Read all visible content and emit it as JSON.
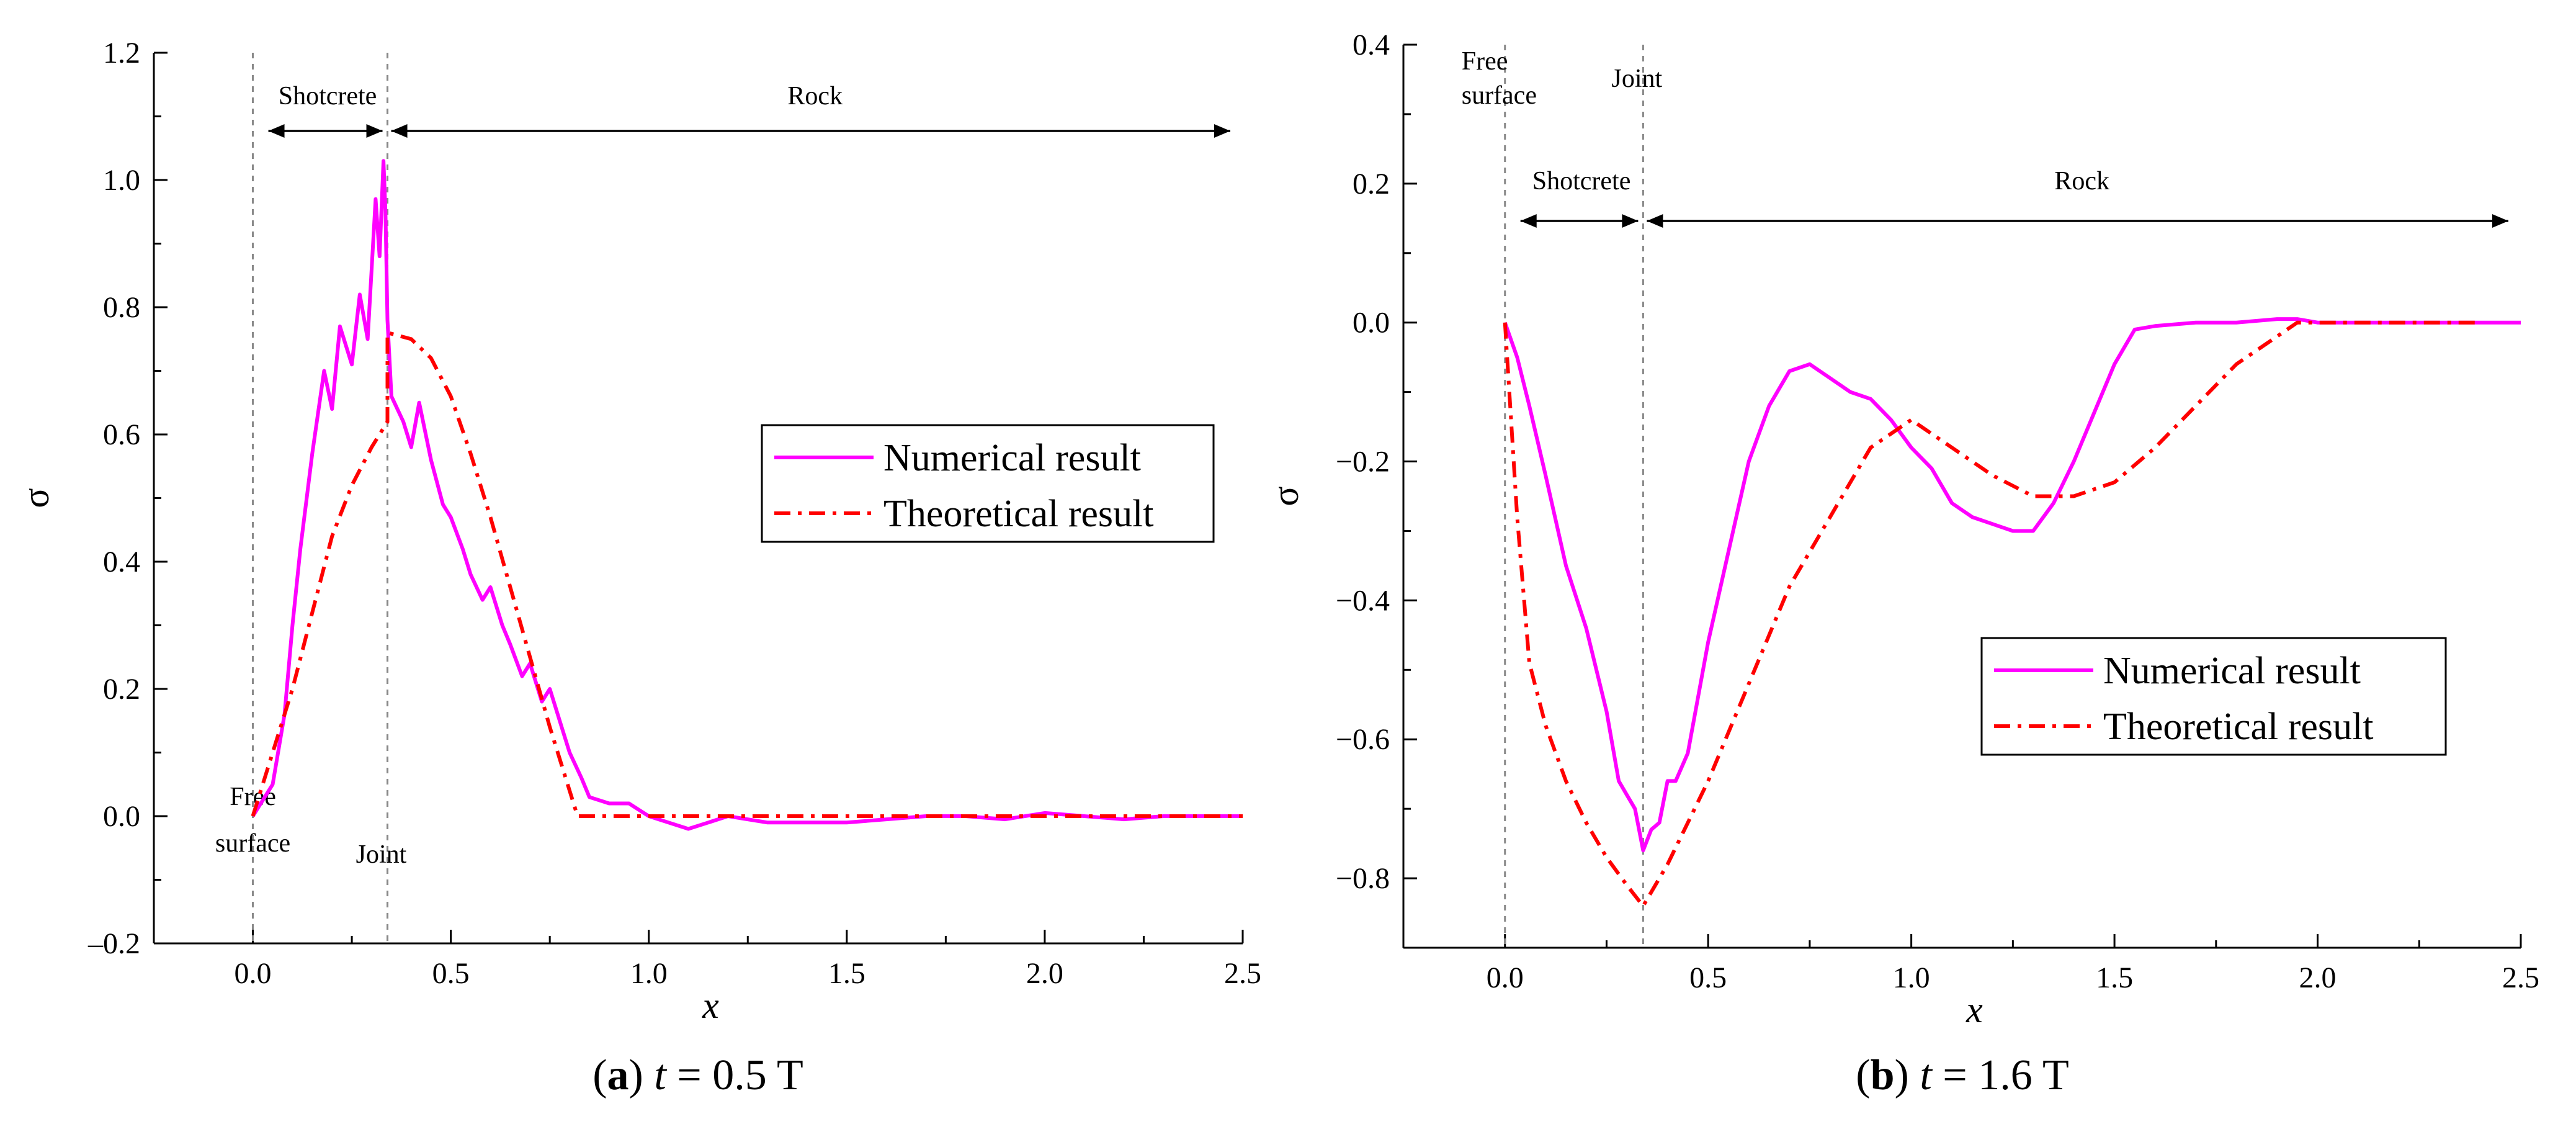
{
  "colors": {
    "numerical": "#ff00ff",
    "theoretical": "#ff0000"
  },
  "chart_data": [
    {
      "type": "line",
      "panel_label": "a",
      "caption_var": "t",
      "caption_rest": " = 0.5 T",
      "xlabel": "x",
      "ylabel": "σ",
      "xlim": [
        -0.25,
        2.5
      ],
      "ylim": [
        -0.2,
        1.2
      ],
      "xticks": [
        0.0,
        0.5,
        1.0,
        1.5,
        2.0,
        2.5
      ],
      "xtick_labels": [
        "0.0",
        "0.5",
        "1.0",
        "1.5",
        "2.0",
        "2.5"
      ],
      "yticks": [
        -0.2,
        0.0,
        0.2,
        0.4,
        0.6,
        0.8,
        1.0,
        1.2
      ],
      "ytick_labels": [
        "–0.2",
        "0.0",
        "0.2",
        "0.4",
        "0.6",
        "0.8",
        "1.0",
        "1.2"
      ],
      "legend_position": "center-right",
      "annotations": {
        "free_surface": [
          "Free",
          "surface"
        ],
        "joint": "Joint",
        "shotcrete": "Shotcrete",
        "rock": "Rock"
      },
      "boundaries": {
        "free_surface_x": 0.0,
        "joint_x": 0.34
      },
      "series": [
        {
          "name": "Numerical result",
          "style": "solid",
          "x": [
            0.0,
            0.05,
            0.08,
            0.1,
            0.12,
            0.15,
            0.18,
            0.2,
            0.22,
            0.25,
            0.27,
            0.29,
            0.31,
            0.32,
            0.33,
            0.335,
            0.34,
            0.35,
            0.38,
            0.4,
            0.42,
            0.45,
            0.48,
            0.5,
            0.53,
            0.55,
            0.58,
            0.6,
            0.63,
            0.65,
            0.68,
            0.7,
            0.73,
            0.75,
            0.78,
            0.8,
            0.83,
            0.85,
            0.9,
            0.95,
            1.0,
            1.05,
            1.1,
            1.15,
            1.2,
            1.3,
            1.4,
            1.5,
            1.6,
            1.7,
            1.8,
            1.9,
            2.0,
            2.1,
            2.2,
            2.3,
            2.4,
            2.5
          ],
          "y": [
            0.0,
            0.05,
            0.16,
            0.3,
            0.42,
            0.57,
            0.7,
            0.64,
            0.77,
            0.71,
            0.82,
            0.75,
            0.97,
            0.88,
            1.03,
            0.95,
            0.78,
            0.66,
            0.62,
            0.58,
            0.65,
            0.56,
            0.49,
            0.47,
            0.42,
            0.38,
            0.34,
            0.36,
            0.3,
            0.27,
            0.22,
            0.24,
            0.18,
            0.2,
            0.14,
            0.1,
            0.06,
            0.03,
            0.02,
            0.02,
            0.0,
            -0.01,
            -0.02,
            -0.01,
            0.0,
            -0.01,
            -0.01,
            -0.01,
            -0.005,
            0.0,
            0.0,
            -0.005,
            0.005,
            0.0,
            -0.005,
            0.0,
            0.0,
            0.0
          ]
        },
        {
          "name": "Theoretical result",
          "style": "dashdot",
          "x": [
            0.0,
            0.05,
            0.1,
            0.15,
            0.2,
            0.25,
            0.3,
            0.34,
            0.34,
            0.4,
            0.45,
            0.5,
            0.55,
            0.6,
            0.65,
            0.7,
            0.75,
            0.8,
            0.82,
            0.9,
            1.0,
            1.5,
            2.0,
            2.5
          ],
          "y": [
            0.0,
            0.1,
            0.2,
            0.32,
            0.44,
            0.52,
            0.58,
            0.62,
            0.76,
            0.75,
            0.72,
            0.66,
            0.57,
            0.47,
            0.36,
            0.25,
            0.14,
            0.04,
            0.0,
            0.0,
            0.0,
            0.0,
            0.0,
            0.0
          ]
        }
      ]
    },
    {
      "type": "line",
      "panel_label": "b",
      "caption_var": "t",
      "caption_rest": " = 1.6 T",
      "xlabel": "x",
      "ylabel": "σ",
      "xlim": [
        -0.25,
        2.5
      ],
      "ylim": [
        -0.9,
        0.4
      ],
      "xticks": [
        0.0,
        0.5,
        1.0,
        1.5,
        2.0,
        2.5
      ],
      "xtick_labels": [
        "0.0",
        "0.5",
        "1.0",
        "1.5",
        "2.0",
        "2.5"
      ],
      "yticks": [
        -0.8,
        -0.6,
        -0.4,
        -0.2,
        0.0,
        0.2,
        0.4
      ],
      "ytick_labels": [
        "−0.8",
        "−0.6",
        "−0.4",
        "−0.2",
        "0.0",
        "0.2",
        "0.4"
      ],
      "legend_position": "lower-right",
      "annotations": {
        "free_surface": [
          "Free",
          "surface"
        ],
        "joint": "Joint",
        "shotcrete": "Shotcrete",
        "rock": "Rock"
      },
      "boundaries": {
        "free_surface_x": 0.0,
        "joint_x": 0.34
      },
      "series": [
        {
          "name": "Numerical result",
          "style": "solid",
          "x": [
            0.0,
            0.03,
            0.06,
            0.1,
            0.15,
            0.2,
            0.25,
            0.28,
            0.3,
            0.32,
            0.34,
            0.36,
            0.38,
            0.4,
            0.42,
            0.45,
            0.5,
            0.55,
            0.6,
            0.65,
            0.7,
            0.75,
            0.8,
            0.85,
            0.9,
            0.95,
            1.0,
            1.05,
            1.1,
            1.15,
            1.2,
            1.25,
            1.3,
            1.35,
            1.4,
            1.45,
            1.5,
            1.55,
            1.6,
            1.7,
            1.8,
            1.9,
            1.95,
            2.0,
            2.1,
            2.2,
            2.3,
            2.4,
            2.5
          ],
          "y": [
            0.0,
            -0.05,
            -0.12,
            -0.22,
            -0.35,
            -0.44,
            -0.56,
            -0.66,
            -0.68,
            -0.7,
            -0.76,
            -0.73,
            -0.72,
            -0.66,
            -0.66,
            -0.62,
            -0.46,
            -0.33,
            -0.2,
            -0.12,
            -0.07,
            -0.06,
            -0.08,
            -0.1,
            -0.11,
            -0.14,
            -0.18,
            -0.21,
            -0.26,
            -0.28,
            -0.29,
            -0.3,
            -0.3,
            -0.26,
            -0.2,
            -0.13,
            -0.06,
            -0.01,
            -0.005,
            0.0,
            0.0,
            0.005,
            0.005,
            0.0,
            0.0,
            0.0,
            0.0,
            0.0,
            0.0
          ]
        },
        {
          "name": "Theoretical result",
          "style": "dashdot",
          "x": [
            0.0,
            0.03,
            0.06,
            0.1,
            0.15,
            0.2,
            0.25,
            0.3,
            0.34,
            0.4,
            0.5,
            0.6,
            0.7,
            0.8,
            0.9,
            1.0,
            1.1,
            1.2,
            1.3,
            1.4,
            1.5,
            1.6,
            1.7,
            1.8,
            1.9,
            1.95,
            2.0,
            2.2,
            2.4
          ],
          "y": [
            0.0,
            -0.28,
            -0.49,
            -0.58,
            -0.66,
            -0.72,
            -0.77,
            -0.81,
            -0.84,
            -0.78,
            -0.66,
            -0.52,
            -0.38,
            -0.28,
            -0.18,
            -0.14,
            -0.18,
            -0.22,
            -0.25,
            -0.25,
            -0.23,
            -0.18,
            -0.12,
            -0.06,
            -0.02,
            0.0,
            0.0,
            0.0,
            0.0
          ]
        }
      ]
    }
  ]
}
